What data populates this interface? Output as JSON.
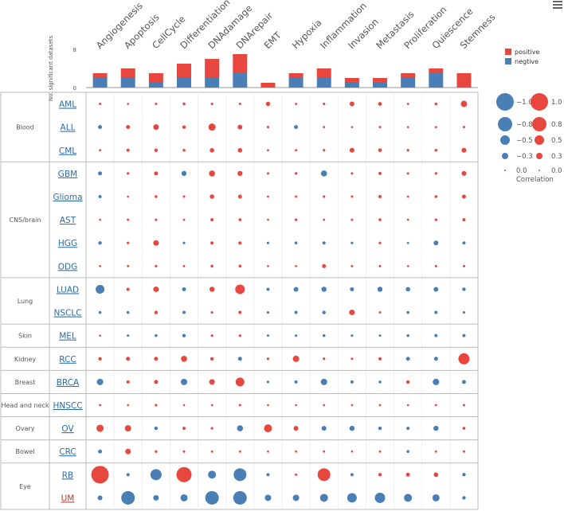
{
  "colors": {
    "positive": "#e8473f",
    "negative": "#4a7fb5",
    "frame": "#bbbbbb",
    "text": "#555555",
    "link": "#2a6ca8",
    "link_red": "#c0392b"
  },
  "menu": {
    "icon": "hamburger-menu-icon"
  },
  "chart_data": {
    "type": "bubble-matrix",
    "columns": [
      "Angiogenesis",
      "Apoptosis",
      "CellCycle",
      "Differentiation",
      "DNAdamage",
      "DNArepair",
      "EMT",
      "Hypoxia",
      "Inflammation",
      "Invasion",
      "Metastasis",
      "Proliferation",
      "Quiescence",
      "Stemness"
    ],
    "bar_chart": {
      "ylabel": "No. significant datasets",
      "yticks": [
        0,
        8
      ],
      "ylim": [
        0,
        8
      ],
      "positive": [
        1,
        2,
        2,
        3,
        4,
        4,
        1,
        1,
        2,
        1,
        1,
        1,
        1,
        3
      ],
      "negative": [
        2,
        2,
        1,
        2,
        2,
        3,
        0,
        2,
        2,
        1,
        1,
        2,
        3,
        0
      ]
    },
    "groups": [
      {
        "name": "Blood",
        "rows": [
          "AML",
          "ALL",
          "CML"
        ]
      },
      {
        "name": "CNS/brain",
        "rows": [
          "GBM",
          "Glioma",
          "AST",
          "HGG",
          "ODG"
        ]
      },
      {
        "name": "Lung",
        "rows": [
          "LUAD",
          "NSCLC"
        ]
      },
      {
        "name": "Skin",
        "rows": [
          "MEL"
        ]
      },
      {
        "name": "Kidney",
        "rows": [
          "RCC"
        ]
      },
      {
        "name": "Breast",
        "rows": [
          "BRCA"
        ]
      },
      {
        "name": "Head and neck",
        "rows": [
          "HNSCC"
        ]
      },
      {
        "name": "Ovary",
        "rows": [
          "OV"
        ]
      },
      {
        "name": "Bowel",
        "rows": [
          "CRC"
        ]
      },
      {
        "name": "Eye",
        "rows": [
          "RB",
          "UM"
        ]
      }
    ],
    "highlighted_row": "UM",
    "values": {
      "AML": [
        0.05,
        0.03,
        0.05,
        0.08,
        0.06,
        0.05,
        0.18,
        0.04,
        0.06,
        0.2,
        0.14,
        0.04,
        0.08,
        0.3
      ],
      "ALL": [
        -0.15,
        0.15,
        0.25,
        0.12,
        0.35,
        0.2,
        0.05,
        -0.15,
        0.04,
        0.03,
        0.05,
        0.03,
        0.04,
        0.05
      ],
      "CML": [
        0.04,
        0.1,
        0.12,
        0.08,
        0.18,
        0.18,
        0.04,
        0.05,
        0.06,
        0.2,
        0.13,
        0.06,
        0.08,
        0.2
      ],
      "GBM": [
        -0.15,
        0.06,
        0.15,
        -0.22,
        0.28,
        0.22,
        0.05,
        0.06,
        -0.28,
        0.05,
        0.1,
        0.05,
        0.06,
        0.2
      ],
      "Glioma": [
        -0.1,
        0.03,
        0.08,
        0.05,
        0.18,
        0.15,
        0.04,
        0.05,
        0.06,
        0.05,
        0.1,
        0.04,
        0.08,
        0.15
      ],
      "AST": [
        0.03,
        0.05,
        0.06,
        0.04,
        0.1,
        0.08,
        0.03,
        0.06,
        0.04,
        0.05,
        0.08,
        0.03,
        0.06,
        0.1
      ],
      "HGG": [
        -0.12,
        0.06,
        0.25,
        -0.06,
        0.1,
        0.1,
        -0.06,
        -0.08,
        -0.1,
        -0.06,
        0.06,
        -0.04,
        -0.2,
        -0.1
      ],
      "ODG": [
        0.03,
        0.04,
        0.06,
        0.04,
        0.08,
        0.08,
        0.03,
        0.03,
        0.15,
        0.04,
        0.05,
        0.03,
        0.05,
        0.05
      ],
      "LUAD": [
        -0.45,
        0.1,
        0.25,
        -0.15,
        0.22,
        0.5,
        -0.1,
        -0.2,
        -0.22,
        -0.15,
        -0.22,
        -0.18,
        -0.2,
        -0.12
      ],
      "NSCLC": [
        -0.08,
        -0.08,
        0.12,
        -0.1,
        0.06,
        0.1,
        -0.06,
        -0.1,
        -0.12,
        0.25,
        0.05,
        -0.08,
        -0.1,
        -0.06
      ],
      "MEL": [
        0.03,
        -0.05,
        -0.08,
        -0.12,
        0.06,
        0.06,
        -0.05,
        -0.06,
        -0.08,
        -0.06,
        -0.05,
        -0.08,
        -0.1,
        -0.1
      ],
      "RCC": [
        0.12,
        0.15,
        0.15,
        0.28,
        0.12,
        -0.15,
        0.06,
        0.3,
        0.06,
        0.05,
        0.1,
        -0.15,
        -0.15,
        0.6
      ],
      "BRCA": [
        -0.3,
        0.1,
        0.15,
        -0.3,
        0.25,
        0.45,
        -0.06,
        -0.1,
        -0.3,
        -0.1,
        -0.08,
        0.12,
        -0.3,
        -0.15
      ],
      "HNSCC": [
        0.04,
        0.03,
        0.06,
        0.03,
        0.04,
        0.05,
        0.03,
        0.03,
        0.04,
        0.03,
        0.04,
        0.03,
        0.04,
        0.05
      ],
      "OV": [
        0.35,
        0.3,
        -0.12,
        0.1,
        0.06,
        -0.28,
        0.4,
        0.2,
        -0.2,
        -0.22,
        -0.12,
        -0.1,
        -0.22,
        0.08
      ],
      "CRC": [
        -0.15,
        0.25,
        0.06,
        0.05,
        0.04,
        0.04,
        0.03,
        0.04,
        0.04,
        0.03,
        0.04,
        -0.08,
        0.04,
        0.05
      ],
      "RB": [
        1.0,
        -0.1,
        -0.6,
        0.85,
        -0.4,
        -0.7,
        -0.1,
        0.05,
        0.7,
        -0.1,
        0.12,
        0.15,
        0.18,
        -0.12
      ],
      "UM": [
        -0.2,
        -0.75,
        -0.25,
        -0.35,
        -0.75,
        -0.75,
        -0.3,
        -0.3,
        -0.4,
        -0.5,
        -0.55,
        -0.4,
        -0.35,
        -0.12
      ]
    },
    "legend_bars": {
      "positive": "positive",
      "negative": "negtive"
    },
    "legend_size": {
      "title": "Correlation",
      "negative": [
        {
          "value": 1.0,
          "label": "−1.0"
        },
        {
          "value": 0.8,
          "label": "−0.8"
        },
        {
          "value": 0.5,
          "label": "−0.5"
        },
        {
          "value": 0.3,
          "label": "−0.3"
        },
        {
          "value": 0.0,
          "label": "0.0"
        }
      ],
      "positive": [
        {
          "value": 1.0,
          "label": "1.0"
        },
        {
          "value": 0.8,
          "label": "0.8"
        },
        {
          "value": 0.5,
          "label": "0.5"
        },
        {
          "value": 0.3,
          "label": "0.3"
        },
        {
          "value": 0.0,
          "label": "0.0"
        }
      ]
    }
  }
}
